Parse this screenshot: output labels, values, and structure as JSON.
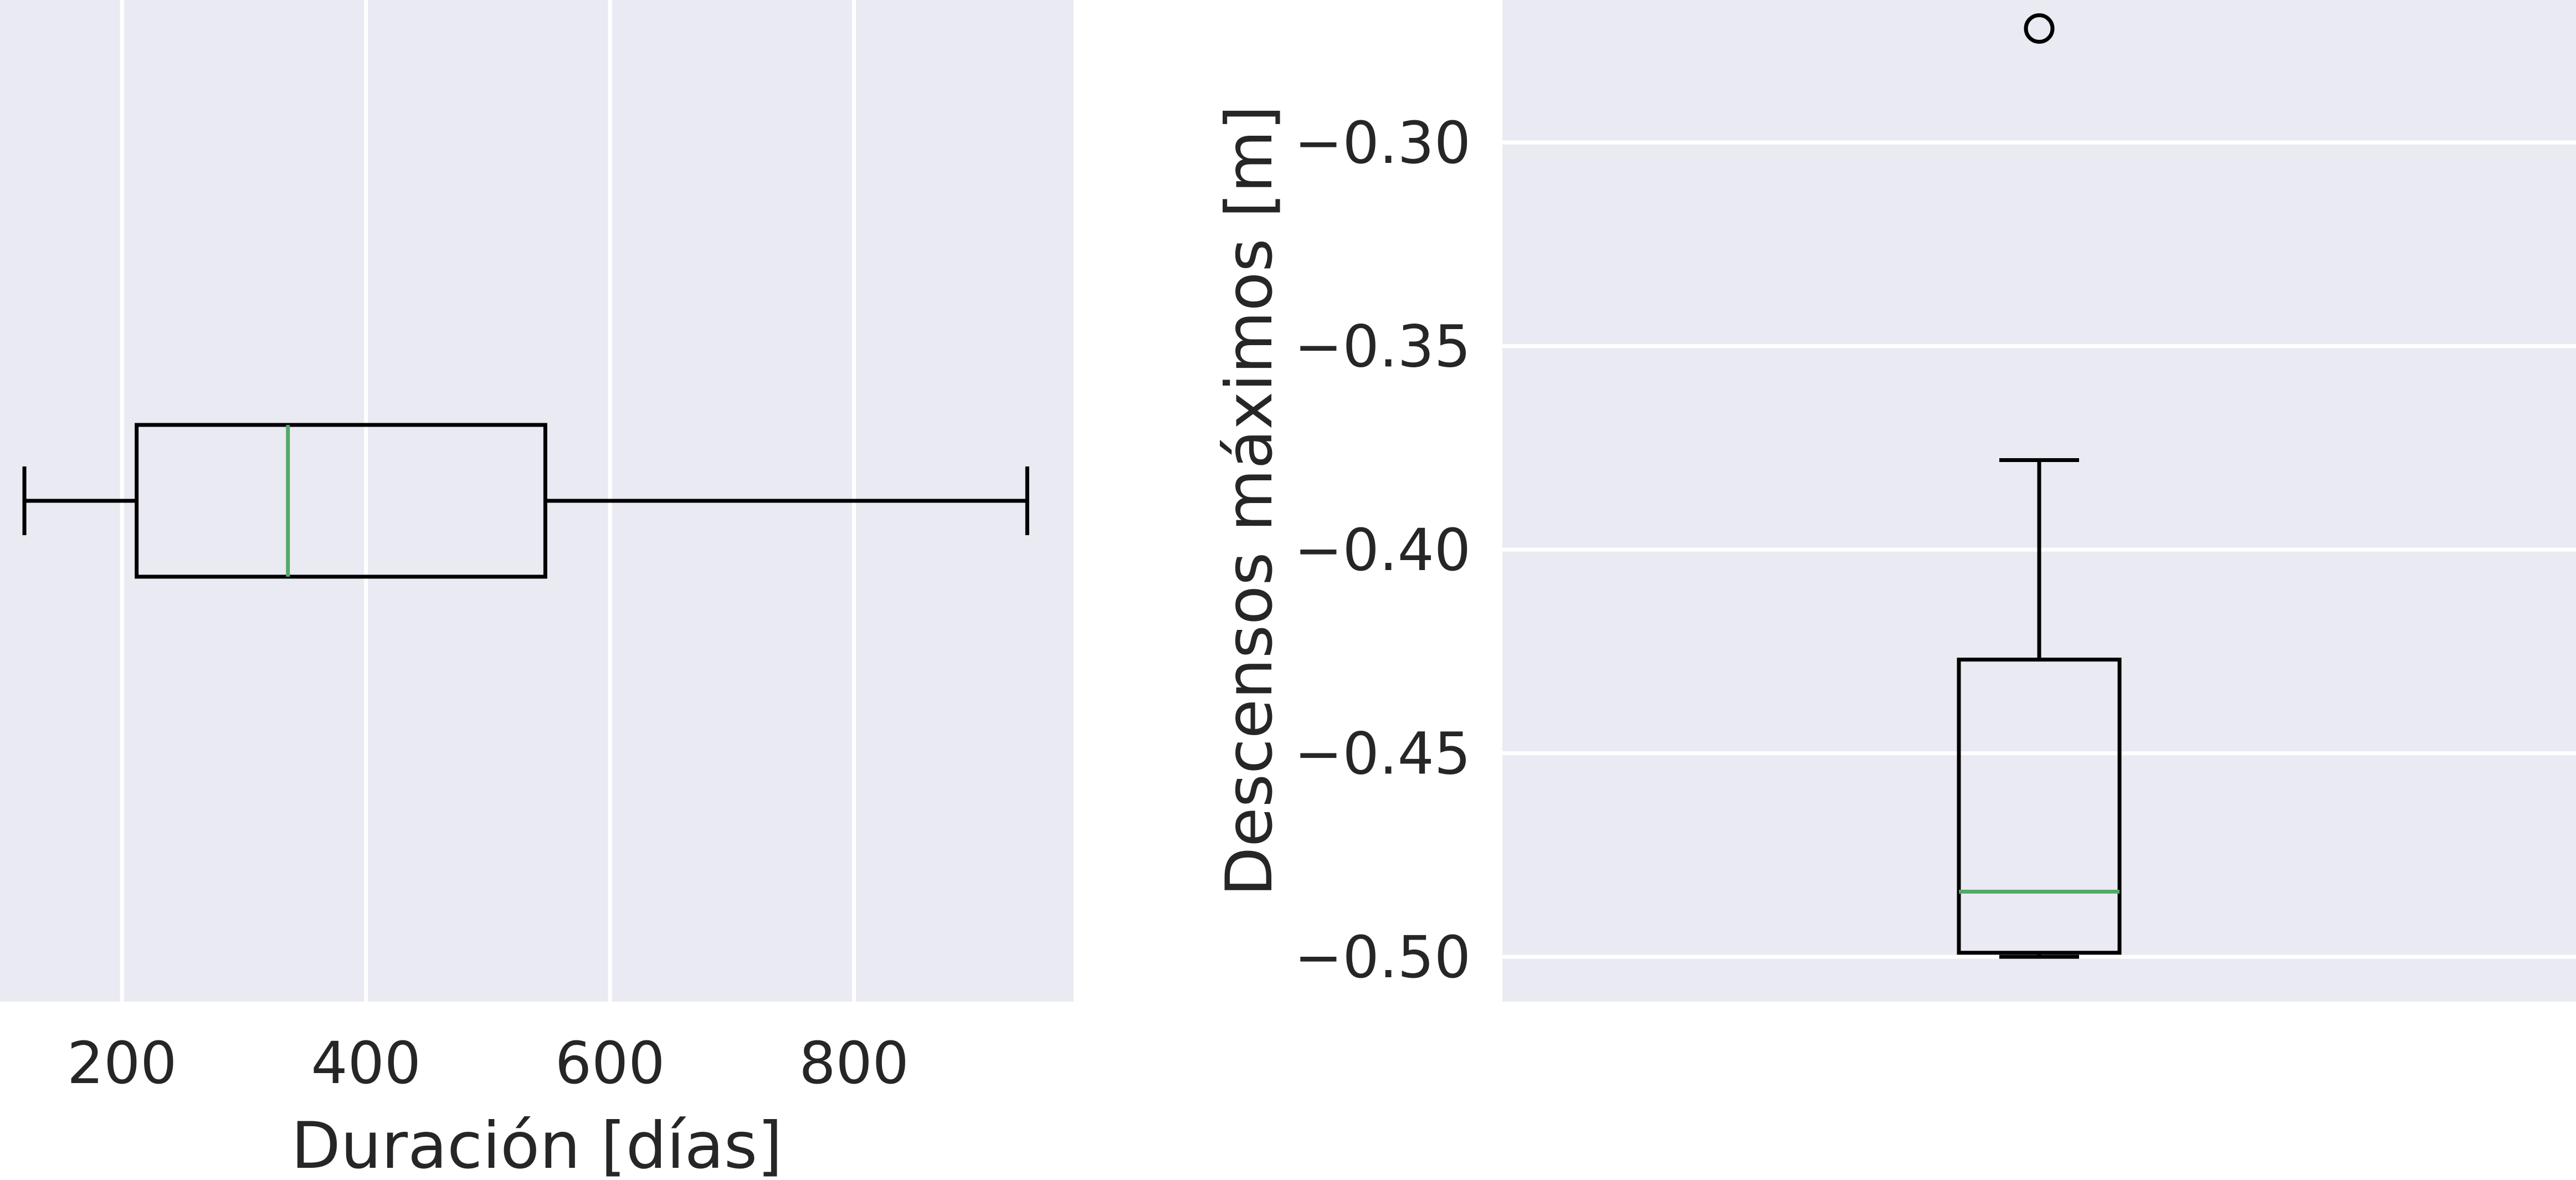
{
  "chart_data": [
    {
      "type": "boxplot",
      "orientation": "horizontal",
      "title": "",
      "xlabel": "Duración [días]",
      "ylabel": "",
      "xlim": [
        100,
        980
      ],
      "xticks": [
        200,
        400,
        600,
        800
      ],
      "xtick_labels": [
        "200",
        "400",
        "600",
        "800"
      ],
      "grid": "x",
      "box": {
        "whisker_low": 120,
        "q1": 212,
        "median": 336,
        "q3": 547,
        "whisker_high": 942,
        "fliers": []
      }
    },
    {
      "type": "boxplot",
      "orientation": "vertical",
      "title": "",
      "xlabel": "",
      "ylabel": "Descensos máximos [m]",
      "ylim": [
        -0.511,
        -0.265
      ],
      "yticks": [
        -0.5,
        -0.45,
        -0.4,
        -0.35,
        -0.3
      ],
      "ytick_labels": [
        "−0.50",
        "−0.45",
        "−0.40",
        "−0.35",
        "−0.30"
      ],
      "grid": "y",
      "box": {
        "whisker_low": -0.5,
        "q1": -0.499,
        "median": -0.484,
        "q3": -0.427,
        "whisker_high": -0.378,
        "fliers": [
          -0.272
        ]
      }
    }
  ],
  "colors": {
    "plot_background": "#eaeaf2",
    "grid": "#ffffff",
    "box": "#000000",
    "median": "#55a868",
    "text": "#262626"
  }
}
